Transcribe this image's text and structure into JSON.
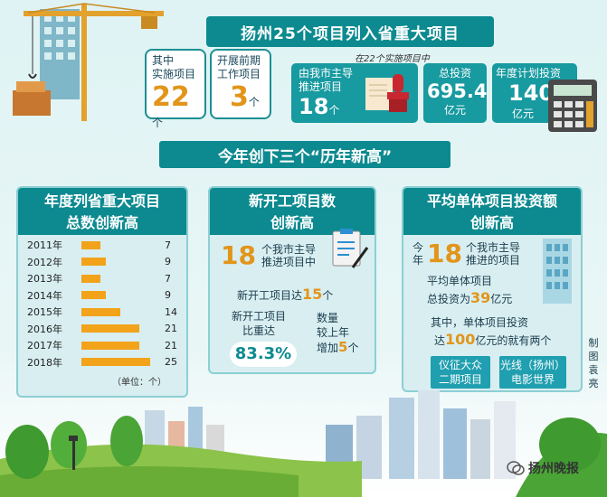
{
  "header": {
    "title": "扬州25个项目列入省重大项目"
  },
  "summary": {
    "implementing": {
      "label_1": "其中",
      "label_2": "实施项目",
      "value": "22",
      "unit": "个"
    },
    "preliminary": {
      "label_1": "开展前期",
      "label_2": "工作项目",
      "value": "3",
      "unit": "个"
    },
    "note": "在22个实施项目中",
    "city_led": {
      "label_1": "由我市主导",
      "label_2": "推进项目",
      "value": "18",
      "unit": "个"
    },
    "total_investment": {
      "label": "总投资",
      "value": "695.4",
      "unit": "亿元"
    },
    "annual_plan": {
      "label": "年度计划投资",
      "value": "140",
      "unit": "亿元"
    }
  },
  "subtitle": "今年创下三个“历年新高”",
  "panel_left": {
    "head_1": "年度列省重大项目",
    "head_2": "总数创新高",
    "unit_note": "（单位：个）"
  },
  "chart_data": {
    "type": "bar",
    "orientation": "horizontal",
    "categories": [
      "2011年",
      "2012年",
      "2013年",
      "2014年",
      "2015年",
      "2016年",
      "2017年",
      "2018年"
    ],
    "values": [
      7,
      9,
      7,
      9,
      14,
      21,
      21,
      25
    ],
    "title": "年度列省重大项目总数创新高",
    "unit": "（单位：个）",
    "bar_color": "#f2a31a"
  },
  "panel_mid": {
    "head_1": "新开工项目数",
    "head_2": "创新高",
    "count": "18",
    "count_text_1": "个我市主导",
    "count_text_2": "推进项目中",
    "new_prefix": "新开工项目达",
    "new_value": "15",
    "new_unit": "个",
    "ratio_label_1": "新开工项目",
    "ratio_label_2": "比重达",
    "ratio_value": "83.3%",
    "increase_label_1": "数量",
    "increase_label_2": "较上年",
    "increase_label_3": "增加",
    "increase_value": "5",
    "increase_unit": "个"
  },
  "panel_right": {
    "head_1": "平均单体项目投资额",
    "head_2": "创新高",
    "year_1": "今",
    "year_2": "年",
    "count": "18",
    "count_text_1": "个我市主导",
    "count_text_2": "推进的项目",
    "avg_label_1": "平均单体项目",
    "avg_prefix": "总投资为",
    "avg_value": "39",
    "avg_unit": "亿元",
    "single_1": "其中，单体项目投资",
    "single_prefix": "达",
    "single_value": "100",
    "single_suffix": "亿元的就有两个",
    "project_a_1": "仪征大众",
    "project_a_2": "二期项目",
    "project_b_1": "光线（扬州）",
    "project_b_2": "电影世界"
  },
  "credit": "制图 袁亮",
  "watermark": "扬州晚报",
  "colors": {
    "accent": "#0c8a90",
    "highlight": "#e2951a",
    "bar": "#f2a31a"
  }
}
